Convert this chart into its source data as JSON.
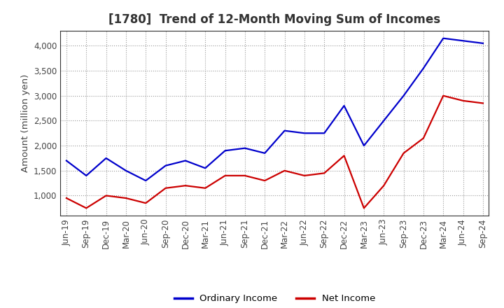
{
  "title": "[1780]  Trend of 12-Month Moving Sum of Incomes",
  "xlabel": "",
  "ylabel": "Amount (million yen)",
  "x_labels": [
    "Jun-19",
    "Sep-19",
    "Dec-19",
    "Mar-20",
    "Jun-20",
    "Sep-20",
    "Dec-20",
    "Mar-21",
    "Jun-21",
    "Sep-21",
    "Dec-21",
    "Mar-22",
    "Jun-22",
    "Sep-22",
    "Dec-22",
    "Mar-23",
    "Jun-23",
    "Sep-23",
    "Dec-23",
    "Mar-24",
    "Jun-24",
    "Sep-24"
  ],
  "ordinary_income": [
    1700,
    1400,
    1750,
    1500,
    1300,
    1600,
    1700,
    1550,
    1900,
    1950,
    1850,
    2300,
    2250,
    2250,
    2800,
    2000,
    2500,
    3000,
    3550,
    4150,
    4100,
    4050
  ],
  "net_income": [
    950,
    750,
    1000,
    950,
    850,
    1150,
    1200,
    1150,
    1400,
    1400,
    1300,
    1500,
    1400,
    1450,
    1800,
    750,
    1200,
    1850,
    2150,
    3000,
    2900,
    2850
  ],
  "ordinary_color": "#0000cc",
  "net_color": "#cc0000",
  "bg_color": "#ffffff",
  "plot_bg_color": "#ffffff",
  "grid_color": "#999999",
  "ylim": [
    600,
    4300
  ],
  "yticks": [
    1000,
    1500,
    2000,
    2500,
    3000,
    3500,
    4000
  ],
  "ytick_labels": [
    "1,000",
    "1,500",
    "2,000",
    "2,500",
    "3,000",
    "3,500",
    "4,000"
  ],
  "title_fontsize": 12,
  "label_fontsize": 9.5,
  "tick_fontsize": 8.5,
  "legend_labels": [
    "Ordinary Income",
    "Net Income"
  ],
  "line_width": 1.6
}
